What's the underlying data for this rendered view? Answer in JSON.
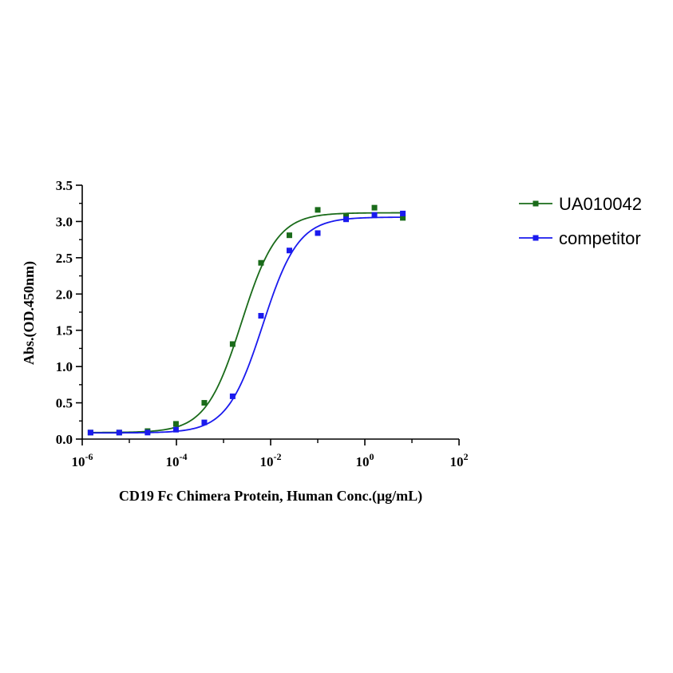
{
  "chart_data": {
    "type": "scatter",
    "xlabel": "CD19 Fc Chimera Protein, Human Conc.(μg/mL)",
    "ylabel": "Abs.(OD.450nm)",
    "xscale": "log",
    "xlim": [
      1e-06,
      100
    ],
    "ylim": [
      0,
      3.5
    ],
    "xticks": [
      {
        "base": "10",
        "exp": "-6"
      },
      {
        "base": "10",
        "exp": "-4"
      },
      {
        "base": "10",
        "exp": "-2"
      },
      {
        "base": "10",
        "exp": "0"
      },
      {
        "base": "10",
        "exp": "2"
      }
    ],
    "yticks": [
      "0.0",
      "0.5",
      "1.0",
      "1.5",
      "2.0",
      "2.5",
      "3.0",
      "3.5"
    ],
    "legend_position": "right",
    "grid": false,
    "series": [
      {
        "name": "UA010042",
        "color": "#1a6b1a",
        "marker": "square",
        "x": [
          1.5e-06,
          6.1e-06,
          2.44e-05,
          9.77e-05,
          0.000391,
          0.00156,
          0.00625,
          0.025,
          0.1,
          0.4,
          1.6,
          6.4
        ],
        "y": [
          0.09,
          0.09,
          0.11,
          0.21,
          0.5,
          1.31,
          2.43,
          2.81,
          3.16,
          3.08,
          3.19,
          3.05
        ],
        "fit": {
          "bottom": 0.09,
          "top": 3.12,
          "ec50": 0.0024,
          "hill": 1.15
        }
      },
      {
        "name": "competitor",
        "color": "#1a1aee",
        "marker": "square",
        "x": [
          1.5e-06,
          6.1e-06,
          2.44e-05,
          9.77e-05,
          0.000391,
          0.00156,
          0.00625,
          0.025,
          0.1,
          0.4,
          1.6,
          6.4
        ],
        "y": [
          0.09,
          0.09,
          0.09,
          0.13,
          0.23,
          0.59,
          1.7,
          2.6,
          2.84,
          3.03,
          3.09,
          3.11
        ],
        "fit": {
          "bottom": 0.085,
          "top": 3.06,
          "ec50": 0.0068,
          "hill": 1.15
        }
      }
    ]
  }
}
